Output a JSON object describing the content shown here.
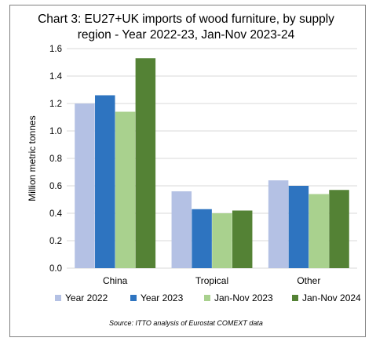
{
  "chart_data": {
    "type": "bar",
    "title_line1": "Chart 3: EU27+UK imports of wood furniture, by supply",
    "title_line2": "region - Year 2022-23, Jan-Nov 2023-24",
    "ylabel": "Million metric tonnes",
    "xlabel": "",
    "ylim": [
      0,
      1.6
    ],
    "yticks": [
      "0.0",
      "0.2",
      "0.4",
      "0.6",
      "0.8",
      "1.0",
      "1.2",
      "1.4",
      "1.6"
    ],
    "categories": [
      "China",
      "Tropical",
      "Other"
    ],
    "series": [
      {
        "name": "Year 2022",
        "color": "#b4c1e4",
        "values": [
          1.2,
          0.56,
          0.64
        ]
      },
      {
        "name": "Year 2023",
        "color": "#2e74c0",
        "values": [
          1.26,
          0.43,
          0.6
        ]
      },
      {
        "name": "Jan-Nov 2023",
        "color": "#a9d18e",
        "values": [
          1.14,
          0.4,
          0.54
        ]
      },
      {
        "name": "Jan-Nov 2024",
        "color": "#548235",
        "values": [
          1.53,
          0.42,
          0.57
        ]
      }
    ],
    "grid": true,
    "gridColor": "#d9d9d9",
    "legend": "bottom",
    "source": "Source: ITTO analysis of Eurostat COMEXT data"
  }
}
